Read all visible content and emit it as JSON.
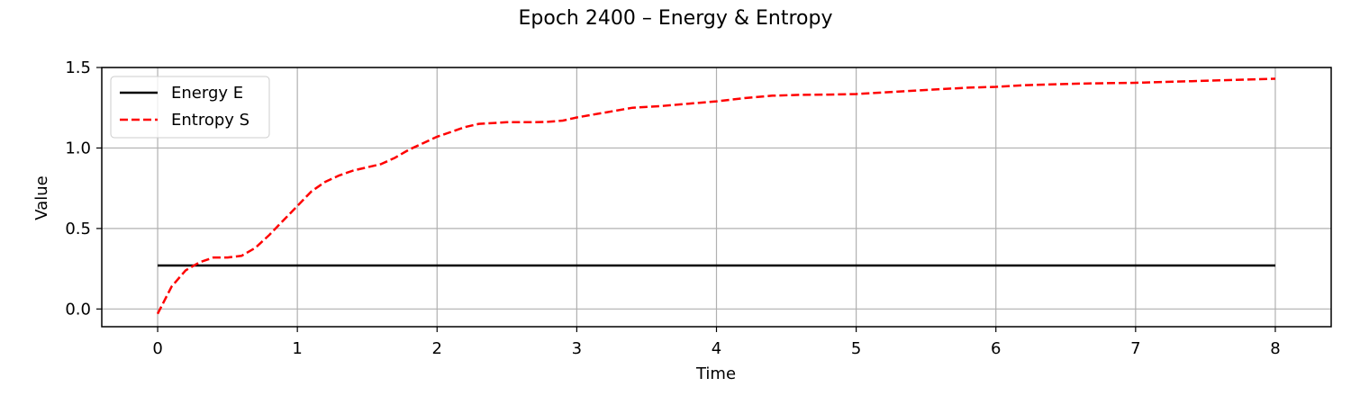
{
  "chart_data": {
    "type": "line",
    "title": "Epoch 2400 – Energy & Entropy",
    "xlabel": "Time",
    "ylabel": "Value",
    "xlim": [
      -0.4,
      8.4
    ],
    "ylim": [
      -0.11,
      1.5
    ],
    "xticks": [
      0,
      1,
      2,
      3,
      4,
      5,
      6,
      7,
      8
    ],
    "xtick_labels": [
      "0",
      "1",
      "2",
      "3",
      "4",
      "5",
      "6",
      "7",
      "8"
    ],
    "yticks": [
      0.0,
      0.5,
      1.0,
      1.5
    ],
    "ytick_labels": [
      "0.0",
      "0.5",
      "1.0",
      "1.5"
    ],
    "grid": true,
    "legend_position": "top-left",
    "series": [
      {
        "name": "Energy E",
        "color": "#000000",
        "style": "solid",
        "x": [
          0,
          8
        ],
        "y": [
          0.27,
          0.27
        ]
      },
      {
        "name": "Entropy S",
        "color": "#ff0000",
        "style": "dashed",
        "x": [
          0,
          0.1,
          0.2,
          0.3,
          0.4,
          0.5,
          0.6,
          0.7,
          0.8,
          0.9,
          1.0,
          1.1,
          1.2,
          1.3,
          1.4,
          1.5,
          1.6,
          1.7,
          1.8,
          1.9,
          2.0,
          2.1,
          2.2,
          2.3,
          2.4,
          2.5,
          2.6,
          2.7,
          2.8,
          2.9,
          3.0,
          3.2,
          3.4,
          3.6,
          3.8,
          4.0,
          4.2,
          4.4,
          4.6,
          4.8,
          5.0,
          5.2,
          5.4,
          5.6,
          5.8,
          6.0,
          6.2,
          6.4,
          6.6,
          6.8,
          7.0,
          7.2,
          7.4,
          7.6,
          7.8,
          8.0
        ],
        "y": [
          -0.03,
          0.14,
          0.24,
          0.29,
          0.32,
          0.32,
          0.33,
          0.38,
          0.46,
          0.55,
          0.64,
          0.73,
          0.79,
          0.83,
          0.86,
          0.88,
          0.9,
          0.94,
          0.99,
          1.03,
          1.07,
          1.1,
          1.13,
          1.15,
          1.155,
          1.16,
          1.16,
          1.16,
          1.163,
          1.17,
          1.19,
          1.22,
          1.25,
          1.26,
          1.275,
          1.29,
          1.31,
          1.325,
          1.33,
          1.332,
          1.335,
          1.345,
          1.355,
          1.365,
          1.375,
          1.38,
          1.39,
          1.395,
          1.4,
          1.403,
          1.405,
          1.41,
          1.415,
          1.42,
          1.425,
          1.43
        ]
      }
    ]
  }
}
